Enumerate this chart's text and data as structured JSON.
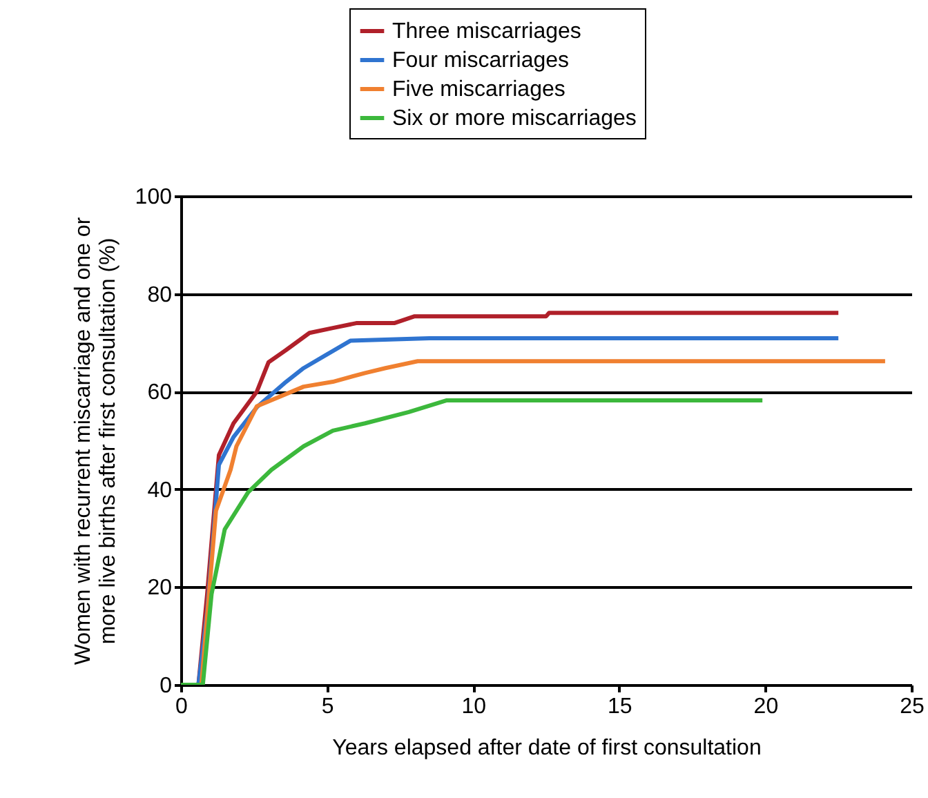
{
  "chart_data": {
    "type": "line",
    "xlabel": "Years elapsed after date of first consultation",
    "ylabel": "Women with recurrent miscarriage and one or more live births after first consultation (%)",
    "xlim": [
      0,
      25
    ],
    "xticks": [
      0,
      5,
      10,
      15,
      20,
      25
    ],
    "ylim": [
      0,
      100
    ],
    "yticks": [
      0,
      20,
      40,
      60,
      80,
      100
    ],
    "grid": "y",
    "legend": "top",
    "marker": "none",
    "line_style": "solid",
    "series": [
      {
        "name": "Three miscarriages",
        "color": "#b0202a",
        "x": [
          0,
          0.6,
          0.9,
          1.3,
          1.8,
          2.6,
          3.0,
          3.6,
          4.4,
          5.2,
          6.0,
          7.3,
          8.0,
          12.5,
          12.6,
          22.5
        ],
        "values": [
          0,
          0,
          18.6,
          47,
          53.5,
          60,
          66,
          68.5,
          72,
          73,
          74,
          74,
          75.4,
          75.4,
          76.1,
          76.1
        ]
      },
      {
        "name": "Four miscarriages",
        "color": "#2f74d0",
        "x": [
          0,
          0.6,
          0.9,
          1.3,
          1.8,
          2.6,
          3.6,
          4.2,
          5.0,
          5.8,
          8.5,
          22.5
        ],
        "values": [
          0,
          0,
          15,
          45,
          50.7,
          56.8,
          62,
          64.8,
          67.6,
          70.4,
          70.9,
          70.9
        ]
      },
      {
        "name": "Five miscarriages",
        "color": "#f08030",
        "x": [
          0,
          0.7,
          1.2,
          1.7,
          1.9,
          2.6,
          4.2,
          5.2,
          6.3,
          7.0,
          8.1,
          24.1
        ],
        "values": [
          0,
          0,
          35.6,
          44,
          48.8,
          57,
          61,
          62,
          63.8,
          64.8,
          66.2,
          66.2
        ]
      },
      {
        "name": "Six or more miscarriages",
        "color": "#3cb83c",
        "x": [
          0,
          0.75,
          1.05,
          1.5,
          2.3,
          3.1,
          4.2,
          5.2,
          6.3,
          7.8,
          9.1,
          19.9
        ],
        "values": [
          0,
          0,
          18.6,
          31.8,
          39.4,
          44,
          48.8,
          52,
          53.5,
          55.8,
          58.2,
          58.2
        ]
      }
    ]
  }
}
